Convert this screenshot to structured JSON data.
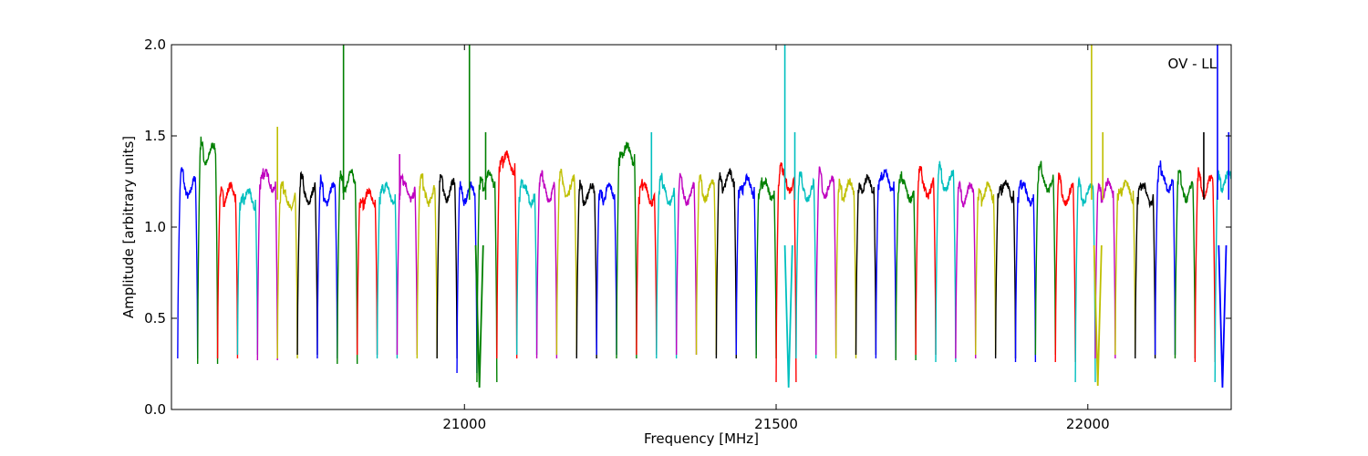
{
  "chart_data": {
    "type": "line",
    "title": "",
    "xlabel": "Frequency [MHz]",
    "ylabel": "Amplitude [arbitrary units]",
    "xlim": [
      20530,
      22230
    ],
    "ylim": [
      0.0,
      2.0
    ],
    "xticks": [
      21000,
      21500,
      22000
    ],
    "yticks": [
      0.0,
      0.5,
      1.0,
      1.5,
      2.0
    ],
    "xtick_labels": [
      "21000",
      "21500",
      "22000"
    ],
    "ytick_labels": [
      "0.0",
      "0.5",
      "1.0",
      "1.5",
      "2.0"
    ],
    "annotation": "OV - LL",
    "grid": false,
    "legend": "none",
    "band_width_mhz": 32,
    "color_cycle": [
      "#0000ff",
      "#008000",
      "#ff0000",
      "#00bfbf",
      "#bf00bf",
      "#bfbf00",
      "#000000"
    ],
    "band_centers_mhz": [
      20556,
      20588,
      20620,
      20652,
      20684,
      20716,
      20748,
      20780,
      20812,
      20844,
      20876,
      20908,
      20940,
      20972,
      21004,
      21036,
      21068,
      21100,
      21132,
      21164,
      21196,
      21228,
      21260,
      21292,
      21324,
      21356,
      21388,
      21420,
      21452,
      21484,
      21516,
      21548,
      21580,
      21612,
      21644,
      21676,
      21708,
      21740,
      21772,
      21804,
      21836,
      21868,
      21900,
      21932,
      21964,
      21996,
      22028,
      22060,
      22092,
      22124,
      22156,
      22188,
      22220
    ],
    "band_levels": [
      1.22,
      1.4,
      1.18,
      1.15,
      1.25,
      1.15,
      1.18,
      1.18,
      1.25,
      1.15,
      1.18,
      1.2,
      1.18,
      1.2,
      1.18,
      1.25,
      1.35,
      1.18,
      1.2,
      1.22,
      1.18,
      1.18,
      1.4,
      1.18,
      1.18,
      1.18,
      1.2,
      1.25,
      1.22,
      1.2,
      1.25,
      1.2,
      1.22,
      1.2,
      1.22,
      1.25,
      1.2,
      1.22,
      1.25,
      1.18,
      1.18,
      1.2,
      1.18,
      1.25,
      1.18,
      1.18,
      1.2,
      1.2,
      1.18,
      1.25,
      1.2,
      1.22,
      1.25
    ],
    "band_dips": [
      0.28,
      0.25,
      0.28,
      0.3,
      0.27,
      0.28,
      0.3,
      0.28,
      0.25,
      0.3,
      0.28,
      0.3,
      0.28,
      0.28,
      0.2,
      0.15,
      0.28,
      0.3,
      0.28,
      0.3,
      0.28,
      0.3,
      0.28,
      0.3,
      0.28,
      0.3,
      0.3,
      0.28,
      0.3,
      0.28,
      0.15,
      0.28,
      0.3,
      0.28,
      0.3,
      0.28,
      0.27,
      0.3,
      0.26,
      0.28,
      0.3,
      0.28,
      0.26,
      0.3,
      0.26,
      0.15,
      0.28,
      0.3,
      0.28,
      0.3,
      0.28,
      0.26,
      0.15
    ],
    "spikes": [
      {
        "x": 20806,
        "y": 2.0,
        "color": "#008000"
      },
      {
        "x": 21008,
        "y": 2.0,
        "color": "#008000"
      },
      {
        "x": 21514,
        "y": 2.0,
        "color": "#00bfbf"
      },
      {
        "x": 22006,
        "y": 2.0,
        "color": "#bfbf00"
      },
      {
        "x": 22208,
        "y": 2.0,
        "color": "#0000ff"
      },
      {
        "x": 20700,
        "y": 1.55,
        "color": "#bfbf00"
      },
      {
        "x": 20896,
        "y": 1.4,
        "color": "#bf00bf"
      },
      {
        "x": 21300,
        "y": 1.52,
        "color": "#00bfbf"
      },
      {
        "x": 21034,
        "y": 1.52,
        "color": "#008000"
      },
      {
        "x": 21530,
        "y": 1.52,
        "color": "#00bfbf"
      },
      {
        "x": 22024,
        "y": 1.52,
        "color": "#bfbf00"
      },
      {
        "x": 22186,
        "y": 1.52,
        "color": "#000000"
      },
      {
        "x": 22226,
        "y": 1.52,
        "color": "#0000ff"
      }
    ],
    "deep_dips": [
      {
        "x": 21024,
        "y": 0.12,
        "color": "#008000"
      },
      {
        "x": 21520,
        "y": 0.12,
        "color": "#00bfbf"
      },
      {
        "x": 22016,
        "y": 0.13,
        "color": "#bfbf00"
      },
      {
        "x": 22216,
        "y": 0.12,
        "color": "#0000ff"
      }
    ]
  }
}
